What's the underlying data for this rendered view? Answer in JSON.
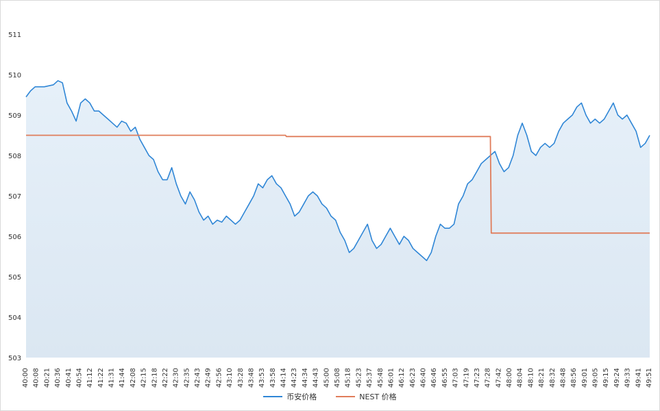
{
  "chart_data": {
    "type": "line",
    "title": "",
    "xlabel": "",
    "ylabel": "",
    "ylim": [
      503,
      511
    ],
    "y_ticks": [
      503,
      504,
      505,
      506,
      507,
      508,
      509,
      510,
      511
    ],
    "x_ticks": [
      "40:00",
      "40:08",
      "40:21",
      "40:36",
      "40:41",
      "40:54",
      "41:12",
      "41:22",
      "41:31",
      "41:44",
      "42:08",
      "42:15",
      "42:18",
      "42:22",
      "42:30",
      "42:35",
      "42:43",
      "42:49",
      "42:56",
      "43:10",
      "43:28",
      "43:48",
      "43:53",
      "43:58",
      "44:14",
      "44:23",
      "44:34",
      "44:43",
      "45:00",
      "45:08",
      "45:18",
      "45:23",
      "45:37",
      "45:48",
      "46:01",
      "46:12",
      "46:23",
      "46:40",
      "46:46",
      "46:55",
      "47:03",
      "47:19",
      "47:23",
      "47:28",
      "47:42",
      "48:00",
      "48:04",
      "48:10",
      "48:21",
      "48:32",
      "48:48",
      "48:56",
      "49:01",
      "49:05",
      "49:15",
      "49:24",
      "49:33",
      "49:41",
      "49:51"
    ],
    "grid": false,
    "area_fill": true,
    "legend_position": "bottom",
    "series": [
      {
        "name": "币安价格",
        "color": "#2f86d6",
        "points": [
          [
            0,
            509.45
          ],
          [
            0.5,
            509.6
          ],
          [
            1,
            509.7
          ],
          [
            2,
            509.7
          ],
          [
            3,
            509.75
          ],
          [
            3.5,
            509.85
          ],
          [
            4,
            509.8
          ],
          [
            4.5,
            509.3
          ],
          [
            5,
            509.1
          ],
          [
            5.5,
            508.85
          ],
          [
            6,
            509.3
          ],
          [
            6.5,
            509.4
          ],
          [
            7,
            509.3
          ],
          [
            7.5,
            509.1
          ],
          [
            8,
            509.1
          ],
          [
            8.5,
            509.0
          ],
          [
            9,
            508.9
          ],
          [
            9.5,
            508.8
          ],
          [
            10,
            508.7
          ],
          [
            10.5,
            508.85
          ],
          [
            11,
            508.8
          ],
          [
            11.5,
            508.6
          ],
          [
            12,
            508.7
          ],
          [
            12.5,
            508.4
          ],
          [
            13,
            508.2
          ],
          [
            13.5,
            508.0
          ],
          [
            14,
            507.9
          ],
          [
            14.5,
            507.6
          ],
          [
            15,
            507.4
          ],
          [
            15.5,
            507.4
          ],
          [
            16,
            507.7
          ],
          [
            16.5,
            507.3
          ],
          [
            17,
            507.0
          ],
          [
            17.5,
            506.8
          ],
          [
            18,
            507.1
          ],
          [
            18.5,
            506.9
          ],
          [
            19,
            506.6
          ],
          [
            19.5,
            506.4
          ],
          [
            20,
            506.5
          ],
          [
            20.5,
            506.3
          ],
          [
            21,
            506.4
          ],
          [
            21.5,
            506.35
          ],
          [
            22,
            506.5
          ],
          [
            22.5,
            506.4
          ],
          [
            23,
            506.3
          ],
          [
            23.5,
            506.4
          ],
          [
            24,
            506.6
          ],
          [
            24.5,
            506.8
          ],
          [
            25,
            507.0
          ],
          [
            25.5,
            507.3
          ],
          [
            26,
            507.2
          ],
          [
            26.5,
            507.4
          ],
          [
            27,
            507.5
          ],
          [
            27.5,
            507.3
          ],
          [
            28,
            507.2
          ],
          [
            28.5,
            507.0
          ],
          [
            29,
            506.8
          ],
          [
            29.5,
            506.5
          ],
          [
            30,
            506.6
          ],
          [
            30.5,
            506.8
          ],
          [
            31,
            507.0
          ],
          [
            31.5,
            507.1
          ],
          [
            32,
            507.0
          ],
          [
            32.5,
            506.8
          ],
          [
            33,
            506.7
          ],
          [
            33.5,
            506.5
          ],
          [
            34,
            506.4
          ],
          [
            34.5,
            506.1
          ],
          [
            35,
            505.9
          ],
          [
            35.5,
            505.6
          ],
          [
            36,
            505.7
          ],
          [
            36.5,
            505.9
          ],
          [
            37,
            506.1
          ],
          [
            37.5,
            506.3
          ],
          [
            38,
            505.9
          ],
          [
            38.5,
            505.7
          ],
          [
            39,
            505.8
          ],
          [
            39.5,
            506.0
          ],
          [
            40,
            506.2
          ],
          [
            40.5,
            506.0
          ],
          [
            41,
            505.8
          ],
          [
            41.5,
            506.0
          ],
          [
            42,
            505.9
          ],
          [
            42.5,
            505.7
          ],
          [
            43,
            505.6
          ],
          [
            43.5,
            505.5
          ],
          [
            44,
            505.4
          ],
          [
            44.5,
            505.6
          ],
          [
            45,
            506.0
          ],
          [
            45.5,
            506.3
          ],
          [
            46,
            506.2
          ],
          [
            46.5,
            506.2
          ],
          [
            47,
            506.3
          ],
          [
            47.5,
            506.8
          ],
          [
            48,
            507.0
          ],
          [
            48.5,
            507.3
          ],
          [
            49,
            507.4
          ],
          [
            49.5,
            507.6
          ],
          [
            50,
            507.8
          ],
          [
            50.5,
            507.9
          ],
          [
            51,
            508.0
          ],
          [
            51.5,
            508.1
          ],
          [
            52,
            507.8
          ],
          [
            52.5,
            507.6
          ],
          [
            53,
            507.7
          ],
          [
            53.5,
            508.0
          ],
          [
            54,
            508.5
          ],
          [
            54.5,
            508.8
          ],
          [
            55,
            508.5
          ],
          [
            55.5,
            508.1
          ],
          [
            56,
            508.0
          ],
          [
            56.5,
            508.2
          ],
          [
            57,
            508.3
          ],
          [
            57.5,
            508.2
          ],
          [
            58,
            508.3
          ],
          [
            58.5,
            508.6
          ],
          [
            59,
            508.8
          ],
          [
            59.5,
            508.9
          ],
          [
            60,
            509.0
          ],
          [
            60.5,
            509.2
          ],
          [
            61,
            509.3
          ],
          [
            61.5,
            509.0
          ],
          [
            62,
            508.8
          ],
          [
            62.5,
            508.9
          ],
          [
            63,
            508.8
          ],
          [
            63.5,
            508.9
          ],
          [
            64,
            509.1
          ],
          [
            64.5,
            509.3
          ],
          [
            65,
            509.0
          ],
          [
            65.5,
            508.9
          ],
          [
            66,
            509.0
          ],
          [
            66.5,
            508.8
          ],
          [
            67,
            508.6
          ],
          [
            67.5,
            508.2
          ],
          [
            68,
            508.3
          ],
          [
            68.5,
            508.5
          ]
        ]
      },
      {
        "name": "NEST 价格",
        "color": "#e07c5a",
        "points": [
          [
            0,
            508.5
          ],
          [
            28.5,
            508.5
          ],
          [
            28.6,
            508.47
          ],
          [
            50.7,
            508.47
          ],
          [
            51.0,
            508.47
          ],
          [
            51.1,
            506.08
          ],
          [
            68.5,
            506.08
          ]
        ]
      }
    ]
  }
}
